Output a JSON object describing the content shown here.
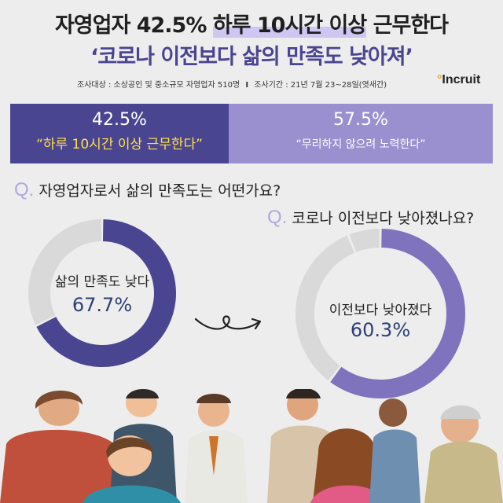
{
  "title": {
    "line1_a": "자영업자 42.5%",
    "line1_b": "하루 10시간 이상",
    "line1_c": "근무한다",
    "line2": "‘코로나 이전보다 삶의 만족도 낮아져’"
  },
  "survey": {
    "target": "조사대상 : 소상공인 및 중소규모 자영업자 510명",
    "separator": "I",
    "period": "조사기간 : 21년 7월 23~28일(엿새간)"
  },
  "brand": {
    "logo_dot": "°",
    "logo_text": "Incruit"
  },
  "banner": {
    "left_pct": "42.5%",
    "left_quote": "“하루 10시간 이상 근무한다”",
    "right_pct": "57.5%",
    "right_quote": "“무리하지 않으려 노력한다”"
  },
  "q1": {
    "mark": "Q.",
    "text": "자영업자로서 삶의 만족도는 어떤가요?"
  },
  "q2": {
    "mark": "Q.",
    "text": "코로나 이전보다 낮아졌나요?"
  },
  "colors": {
    "dark_purple": "#4a4590",
    "light_purple": "#9a90cf",
    "donut1_fill": "#4a4590",
    "donut2_fill": "#7f73bd",
    "track": "#d9d9d9",
    "yellow": "#ffe04a"
  },
  "chart_data": [
    {
      "type": "pie",
      "style": "donut",
      "categories": [
        "삶의 만족도 낮다",
        ""
      ],
      "values": [
        67.7,
        32.3
      ],
      "center_label": "삶의 만족도 낮다",
      "center_value": "67.7%"
    },
    {
      "type": "pie",
      "style": "donut",
      "categories": [
        "이전보다 낮아졌다",
        "",
        ""
      ],
      "values": [
        60.3,
        33.5,
        6.2
      ],
      "center_label": "이전보다 낮아졌다",
      "center_value": "60.3%"
    }
  ]
}
